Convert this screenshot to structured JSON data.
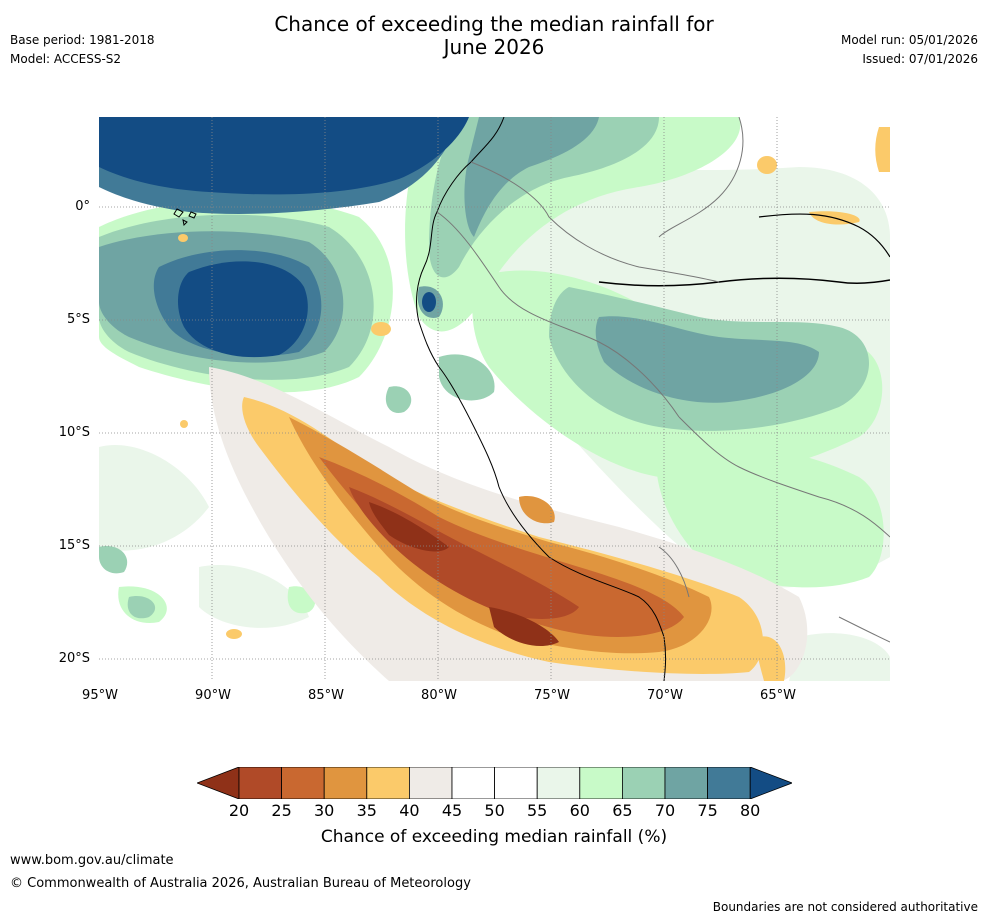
{
  "header": {
    "title_line1": "Chance of exceeding the median rainfall for",
    "title_line2": "June 2026",
    "base_period": "Base period: 1981-2018",
    "model": "Model: ACCESS-S2",
    "model_run": "Model run: 05/01/2026",
    "issued": "Issued: 07/01/2026"
  },
  "map": {
    "lat_labels": [
      "0°",
      "5°S",
      "10°S",
      "15°S",
      "20°S"
    ],
    "lon_labels": [
      "95°W",
      "90°W",
      "85°W",
      "80°W",
      "75°W",
      "70°W",
      "65°W"
    ]
  },
  "colorbar": {
    "title": "Chance of exceeding median rainfall (%)",
    "ticks": [
      "20",
      "25",
      "30",
      "35",
      "40",
      "45",
      "50",
      "55",
      "60",
      "65",
      "70",
      "75",
      "80"
    ],
    "colors": [
      "#8f3118",
      "#b04a28",
      "#c96830",
      "#e0953f",
      "#fbca6a",
      "#efebe7",
      "#ffffff",
      "#ffffff",
      "#eaf6ea",
      "#c8fac8",
      "#9bd1b4",
      "#6fa4a3",
      "#417a97",
      "#134c84"
    ]
  },
  "footer": {
    "url": "www.bom.gov.au/climate",
    "copyright": "© Commonwealth of Australia 2026, Australian Bureau of Meteorology",
    "disclaimer": "Boundaries are not considered authoritative"
  }
}
